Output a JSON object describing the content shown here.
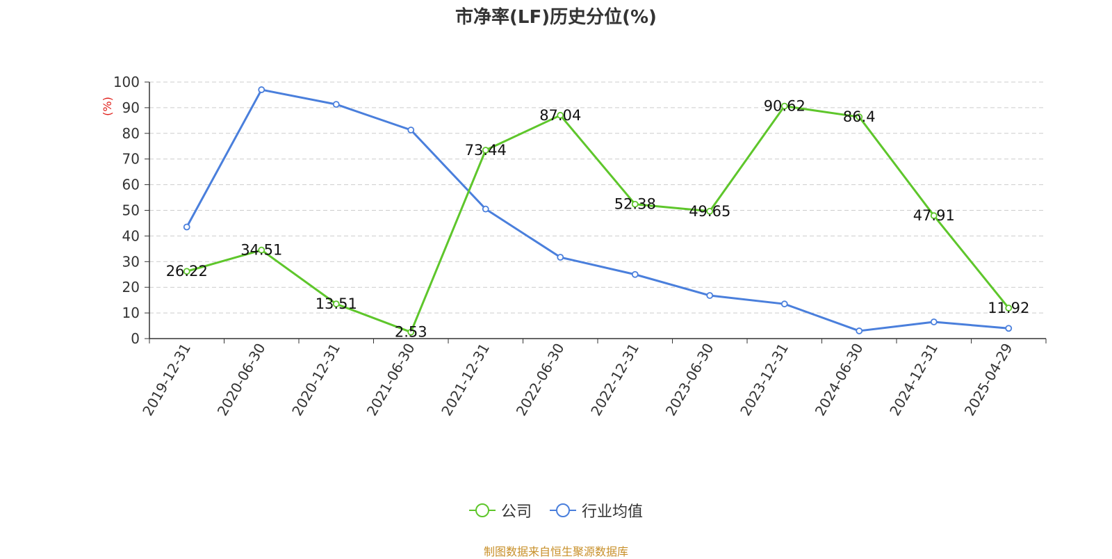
{
  "chart_data": {
    "type": "line",
    "title": "市净率(LF)历史分位(%)",
    "ylabel": "(%)",
    "xlabel": "",
    "categories": [
      "2019-12-31",
      "2020-06-30",
      "2020-12-31",
      "2021-06-30",
      "2021-12-31",
      "2022-06-30",
      "2022-12-31",
      "2023-06-30",
      "2023-12-31",
      "2024-06-30",
      "2024-12-31",
      "2025-04-29"
    ],
    "ylim": [
      0,
      100
    ],
    "yticks": [
      0,
      10,
      20,
      30,
      40,
      50,
      60,
      70,
      80,
      90,
      100
    ],
    "grid": true,
    "legend_position": "bottom",
    "series": [
      {
        "name": "公司",
        "color": "#5ec62b",
        "show_labels": true,
        "values": [
          26.22,
          34.51,
          13.51,
          2.53,
          73.44,
          87.04,
          52.38,
          49.65,
          90.62,
          86.4,
          47.91,
          11.92
        ]
      },
      {
        "name": "行业均值",
        "color": "#4a7fdc",
        "show_labels": false,
        "values": [
          43.5,
          97.0,
          91.3,
          81.3,
          50.5,
          31.7,
          25.0,
          16.8,
          13.5,
          3.0,
          6.5,
          4.0
        ]
      }
    ]
  },
  "footer": {
    "source": "制图数据来自恒生聚源数据库"
  }
}
